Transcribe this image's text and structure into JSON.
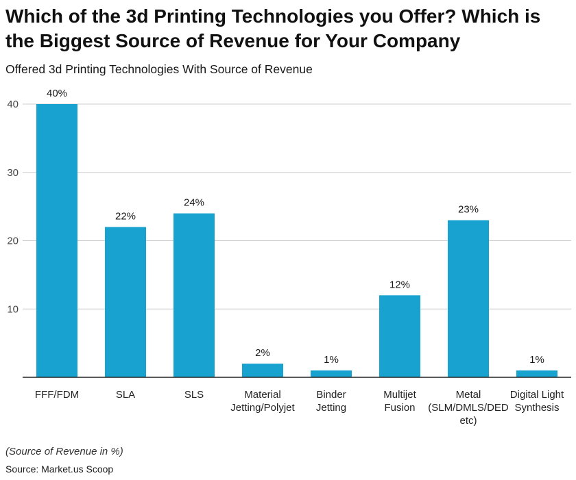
{
  "chart_data": {
    "type": "bar",
    "title": "Which of the 3d Printing Technologies you Offer? Which is the Biggest Source of Revenue for Your Company",
    "subtitle": "Offered 3d Printing Technologies With Source of Revenue",
    "categories": [
      [
        "FFF/FDM"
      ],
      [
        "SLA"
      ],
      [
        "SLS"
      ],
      [
        "Material",
        "Jetting/Polyjet"
      ],
      [
        "Binder",
        "Jetting"
      ],
      [
        "Multijet",
        "Fusion"
      ],
      [
        "Metal",
        "(SLM/DMLS/DED",
        "etc)"
      ],
      [
        "Digital Light",
        "Synthesis"
      ]
    ],
    "values": [
      40,
      22,
      24,
      2,
      1,
      12,
      23,
      1
    ],
    "data_labels": [
      "40%",
      "22%",
      "24%",
      "2%",
      "1%",
      "12%",
      "23%",
      "1%"
    ],
    "yticks": [
      10,
      20,
      30,
      40
    ],
    "ylim": [
      0,
      40
    ],
    "grid": true,
    "bar_color": "#17a2d0",
    "grid_color": "#cccccc"
  },
  "note": "(Source of Revenue in %)",
  "source": "Source: Market.us Scoop"
}
